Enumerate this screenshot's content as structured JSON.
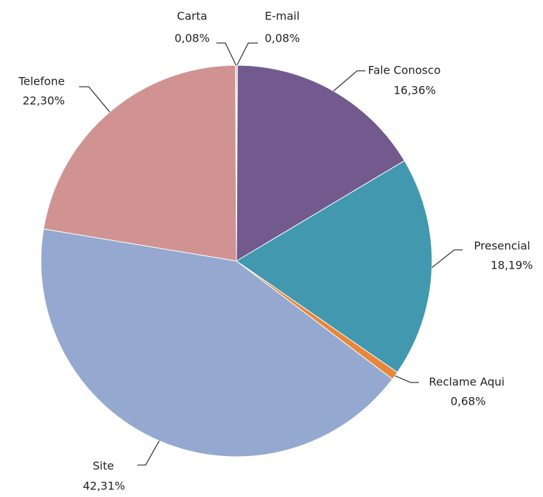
{
  "chart_data": {
    "type": "pie",
    "categories": [
      "E-mail",
      "Fale Conosco",
      "Presencial",
      "Reclame Aqui",
      "Site",
      "Telefone",
      "Carta"
    ],
    "values": [
      0.08,
      16.36,
      18.19,
      0.68,
      42.31,
      22.3,
      0.08
    ],
    "value_labels": [
      "0,08%",
      "16,36%",
      "18,19%",
      "0,68%",
      "42,31%",
      "22,30%",
      "0,08%"
    ],
    "colors": [
      "#4f81bd",
      "#725a8f",
      "#4198af",
      "#e8873a",
      "#95a9d0",
      "#d19392",
      "#c0504d"
    ]
  }
}
